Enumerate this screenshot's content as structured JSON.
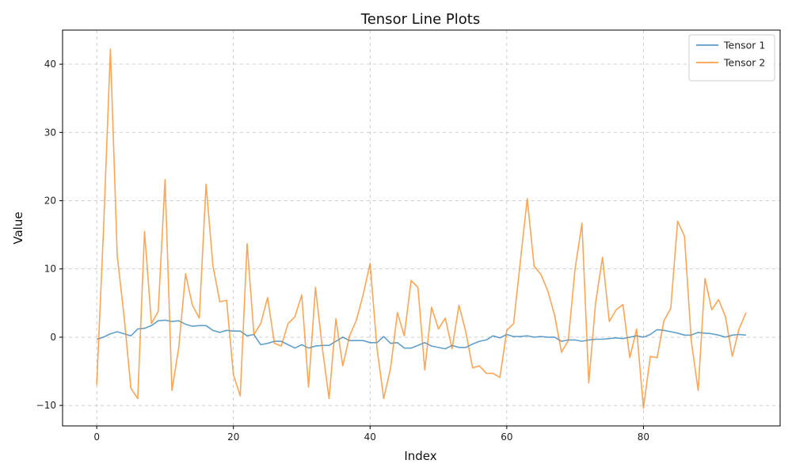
{
  "chart_data": {
    "type": "line",
    "title": "Tensor Line Plots",
    "xlabel": "Index",
    "ylabel": "Value",
    "xlim": [
      -5,
      100
    ],
    "ylim": [
      -13,
      45
    ],
    "xticks": [
      0,
      20,
      40,
      60,
      80
    ],
    "yticks": [
      -10,
      0,
      10,
      20,
      30,
      40
    ],
    "grid": true,
    "legend_position": "top-right",
    "series": [
      {
        "name": "Tensor 1",
        "color": "#1f77b4",
        "x": [
          0,
          1,
          2,
          3,
          4,
          5,
          6,
          7,
          8,
          9,
          10,
          11,
          12,
          13,
          14,
          15,
          16,
          17,
          18,
          19,
          20,
          21,
          22,
          23,
          24,
          25,
          26,
          27,
          28,
          29,
          30,
          31,
          32,
          33,
          34,
          35,
          36,
          37,
          38,
          39,
          40,
          41,
          42,
          43,
          44,
          45,
          46,
          47,
          48,
          49,
          50,
          51,
          52,
          53,
          54,
          55,
          56,
          57,
          58,
          59,
          60,
          61,
          62,
          63,
          64,
          65,
          66,
          67,
          68,
          69,
          70,
          71,
          72,
          73,
          74,
          75,
          76,
          77,
          78,
          79,
          80,
          81,
          82,
          83,
          84,
          85,
          86,
          87,
          88,
          89,
          90,
          91,
          92,
          93,
          94,
          95
        ],
        "values": [
          -0.3,
          0.0,
          0.5,
          0.8,
          0.5,
          0.2,
          1.2,
          1.3,
          1.7,
          2.4,
          2.5,
          2.3,
          2.4,
          1.9,
          1.6,
          1.7,
          1.7,
          1.0,
          0.7,
          1.0,
          0.9,
          0.9,
          0.2,
          0.4,
          -1.1,
          -0.9,
          -0.6,
          -0.6,
          -1.1,
          -1.6,
          -1.1,
          -1.6,
          -1.3,
          -1.2,
          -1.2,
          -0.6,
          0.0,
          -0.5,
          -0.5,
          -0.5,
          -0.8,
          -0.8,
          0.1,
          -0.9,
          -0.8,
          -1.6,
          -1.6,
          -1.2,
          -0.8,
          -1.3,
          -1.5,
          -1.7,
          -1.2,
          -1.5,
          -1.5,
          -1.0,
          -0.6,
          -0.4,
          0.2,
          -0.1,
          0.4,
          0.1,
          0.1,
          0.2,
          0.0,
          0.1,
          0.0,
          0.0,
          -0.6,
          -0.4,
          -0.4,
          -0.6,
          -0.4,
          -0.3,
          -0.3,
          -0.2,
          -0.1,
          -0.2,
          0.0,
          0.2,
          0.0,
          0.4,
          1.1,
          1.0,
          0.8,
          0.6,
          0.3,
          0.3,
          0.7,
          0.6,
          0.5,
          0.3,
          0.0,
          0.3,
          0.4,
          0.3
        ]
      },
      {
        "name": "Tensor 2",
        "color": "#ff7f0e",
        "x": [
          0,
          1,
          2,
          3,
          4,
          5,
          6,
          7,
          8,
          9,
          10,
          11,
          12,
          13,
          14,
          15,
          16,
          17,
          18,
          19,
          20,
          21,
          22,
          23,
          24,
          25,
          26,
          27,
          28,
          29,
          30,
          31,
          32,
          33,
          34,
          35,
          36,
          37,
          38,
          39,
          40,
          41,
          42,
          43,
          44,
          45,
          46,
          47,
          48,
          49,
          50,
          51,
          52,
          53,
          54,
          55,
          56,
          57,
          58,
          59,
          60,
          61,
          62,
          63,
          64,
          65,
          66,
          67,
          68,
          69,
          70,
          71,
          72,
          73,
          74,
          75,
          76,
          77,
          78,
          79,
          80,
          81,
          82,
          83,
          84,
          85,
          86,
          87,
          88,
          89,
          90,
          91,
          92,
          93,
          94,
          95
        ],
        "values": [
          -7.0,
          16.0,
          42.2,
          12.0,
          3.0,
          -7.5,
          -9.0,
          15.5,
          2.0,
          3.8,
          23.1,
          -7.8,
          -1.5,
          9.3,
          4.7,
          2.8,
          22.4,
          10.5,
          5.2,
          5.4,
          -5.5,
          -8.6,
          13.7,
          0.4,
          2.0,
          5.8,
          -0.9,
          -1.3,
          2.0,
          3.0,
          6.2,
          -7.3,
          7.3,
          -1.5,
          -9.0,
          2.7,
          -4.2,
          0.2,
          2.5,
          6.3,
          10.8,
          -1.5,
          -9.0,
          -4.5,
          3.6,
          0.2,
          8.3,
          7.3,
          -4.8,
          4.4,
          1.2,
          2.8,
          -1.7,
          4.7,
          0.8,
          -4.5,
          -4.2,
          -5.3,
          -5.3,
          -5.9,
          1.0,
          2.0,
          11.2,
          20.3,
          10.4,
          9.2,
          6.8,
          3.2,
          -2.2,
          -0.5,
          10.0,
          16.7,
          -6.7,
          5.0,
          11.7,
          2.3,
          4.0,
          4.8,
          -3.0,
          1.2,
          -10.4,
          -2.8,
          -3.0,
          2.4,
          4.2,
          17.0,
          14.8,
          -0.5,
          -7.8,
          8.6,
          4.0,
          5.5,
          3.0,
          -2.8,
          1.2,
          3.6
        ]
      }
    ]
  }
}
